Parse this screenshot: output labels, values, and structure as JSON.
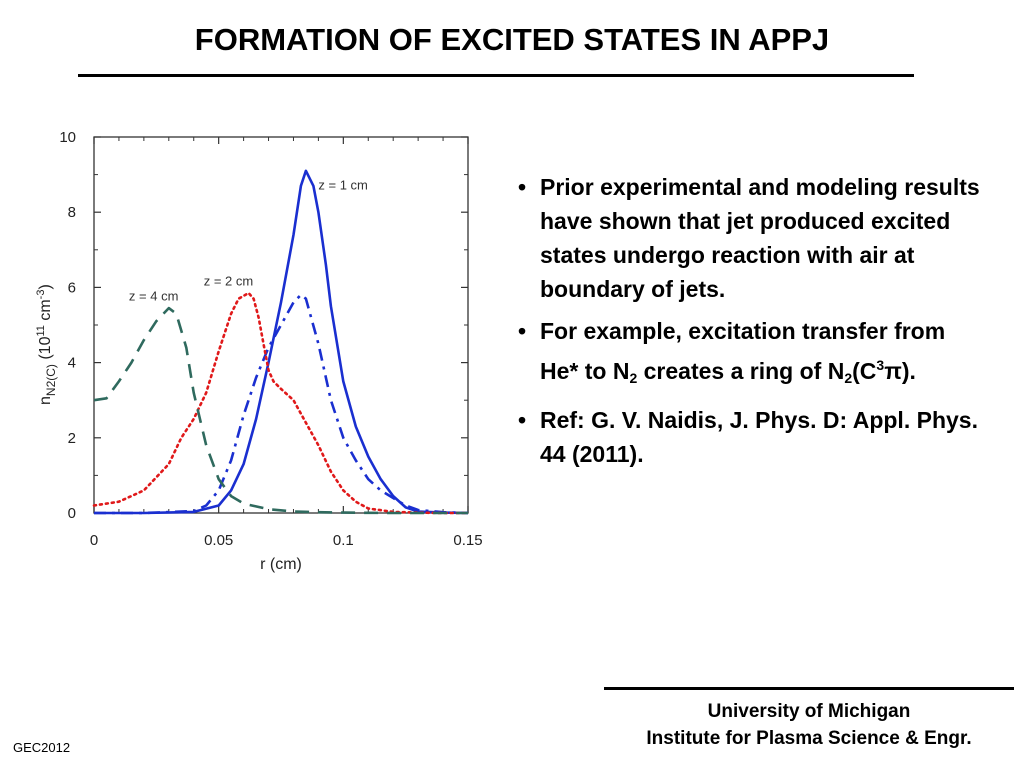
{
  "title": "FORMATION OF EXCITED STATES IN APPJ",
  "bullets": [
    {
      "text": "Prior experimental and modeling results have shown that jet produced excited states undergo reaction with air at boundary of jets."
    },
    {
      "pre": "For example, excitation transfer from He* to N",
      "sub1": "2",
      "mid": " creates a ring of N",
      "sub2": "2",
      "mid2": "(C",
      "sup": "3",
      "post": "π)."
    },
    {
      "text": "Ref:  G. V. Naidis, J. Phys. D: Appl. Phys. 44 (2011)."
    }
  ],
  "bullet_symbol": "•",
  "footer": {
    "line1": "University of Michigan",
    "line2": "Institute for Plasma Science & Engr."
  },
  "conference": "GEC2012",
  "colors": {
    "z1": "#1a2fd0",
    "z2": "#e0191a",
    "z4": "#2f6a5e",
    "axis": "#333333"
  },
  "chart_data": {
    "type": "line",
    "xlabel": "r (cm)",
    "ylabel_main": "n",
    "ylabel_sub": "N2(C)",
    "ylabel_units": " (10",
    "ylabel_exp": "11",
    "ylabel_tail": " cm",
    "ylabel_exp2": "-3",
    "ylabel_close": ")",
    "xlim": [
      0,
      0.15
    ],
    "ylim": [
      0,
      10
    ],
    "xticks": [
      "0",
      "0.05",
      "0.1",
      "0.15"
    ],
    "yticks": [
      "0",
      "2",
      "4",
      "6",
      "8",
      "10"
    ],
    "annotations": [
      {
        "text": "z = 1 cm",
        "x": 0.09,
        "y": 8.6
      },
      {
        "text": "z = 2 cm",
        "x": 0.044,
        "y": 6.05
      },
      {
        "text": "z = 4 cm",
        "x": 0.014,
        "y": 5.65
      }
    ],
    "series": [
      {
        "style": "solid",
        "colorKey": "z1",
        "x": [
          0,
          0.02,
          0.04,
          0.05,
          0.055,
          0.06,
          0.065,
          0.07,
          0.075,
          0.08,
          0.083,
          0.085,
          0.088,
          0.09,
          0.093,
          0.095,
          0.1,
          0.105,
          0.11,
          0.115,
          0.12,
          0.125,
          0.13,
          0.14,
          0.15
        ],
        "y": [
          0,
          0,
          0.03,
          0.2,
          0.6,
          1.3,
          2.5,
          4.0,
          5.6,
          7.4,
          8.7,
          9.1,
          8.7,
          8.0,
          6.6,
          5.5,
          3.5,
          2.3,
          1.5,
          0.9,
          0.45,
          0.15,
          0.04,
          0.01,
          0
        ]
      },
      {
        "style": "dashdot",
        "colorKey": "z1",
        "x": [
          0,
          0.02,
          0.04,
          0.045,
          0.05,
          0.055,
          0.06,
          0.065,
          0.07,
          0.075,
          0.08,
          0.083,
          0.085,
          0.09,
          0.095,
          0.1,
          0.105,
          0.11,
          0.115,
          0.12,
          0.125,
          0.13,
          0.14,
          0.15
        ],
        "y": [
          0,
          0,
          0.05,
          0.2,
          0.6,
          1.4,
          2.6,
          3.6,
          4.4,
          5.0,
          5.6,
          5.8,
          5.7,
          4.5,
          3.0,
          2.0,
          1.4,
          0.9,
          0.6,
          0.4,
          0.2,
          0.08,
          0.02,
          0
        ]
      },
      {
        "style": "dotted",
        "colorKey": "z2",
        "x": [
          0,
          0.01,
          0.02,
          0.03,
          0.035,
          0.04,
          0.045,
          0.05,
          0.055,
          0.058,
          0.062,
          0.064,
          0.066,
          0.068,
          0.07,
          0.072,
          0.075,
          0.08,
          0.085,
          0.09,
          0.095,
          0.1,
          0.105,
          0.11,
          0.12,
          0.13,
          0.14,
          0.15
        ],
        "y": [
          0.2,
          0.3,
          0.6,
          1.3,
          2.0,
          2.5,
          3.2,
          4.3,
          5.3,
          5.7,
          5.85,
          5.7,
          5.2,
          4.5,
          3.8,
          3.5,
          3.3,
          3.0,
          2.4,
          1.8,
          1.1,
          0.6,
          0.3,
          0.12,
          0.03,
          0.01,
          0,
          0
        ]
      },
      {
        "style": "dashed",
        "colorKey": "z4",
        "x": [
          0,
          0.005,
          0.01,
          0.015,
          0.02,
          0.025,
          0.03,
          0.033,
          0.037,
          0.04,
          0.045,
          0.05,
          0.055,
          0.06,
          0.07,
          0.08,
          0.09,
          0.1,
          0.12,
          0.15
        ],
        "y": [
          3.0,
          3.05,
          3.5,
          4.0,
          4.6,
          5.1,
          5.45,
          5.3,
          4.4,
          3.2,
          1.8,
          0.9,
          0.45,
          0.25,
          0.1,
          0.04,
          0.02,
          0.01,
          0,
          0
        ]
      }
    ]
  }
}
